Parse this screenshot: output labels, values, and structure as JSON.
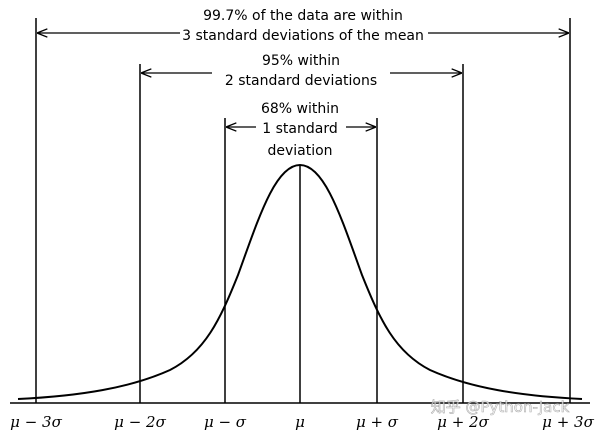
{
  "annotations": [
    {
      "lines": [
        "99.7% of the data are within",
        "3 standard deviations of the mean"
      ]
    },
    {
      "lines": [
        "95% within",
        "2 standard deviations"
      ]
    },
    {
      "lines": [
        "68% within",
        "1 standard",
        "deviation"
      ]
    }
  ],
  "axis_labels": [
    "μ − 3σ",
    "μ − 2σ",
    "μ − σ",
    "μ",
    "μ + σ",
    "μ + 2σ",
    "μ + 3σ"
  ],
  "watermark": "知乎 @Python-Jack"
}
